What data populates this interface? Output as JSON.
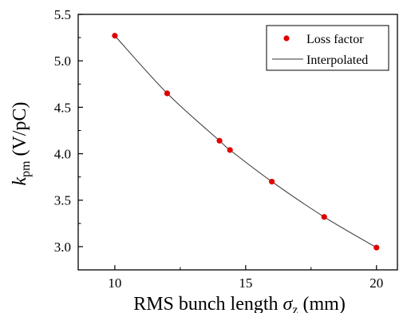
{
  "chart_data": {
    "type": "scatter",
    "xlabel": {
      "main": "RMS bunch length ",
      "symbol": "σ",
      "subscript": "z",
      "unit": " (mm)"
    },
    "ylabel": {
      "symbol": "k",
      "subscript": "pm",
      "unit": " (V/pC)"
    },
    "xlim": [
      8.6,
      20.8
    ],
    "ylim": [
      2.75,
      5.5
    ],
    "xticks": [
      10,
      15,
      20
    ],
    "xtick_labels": [
      "10",
      "15",
      "20"
    ],
    "yticks": [
      3.0,
      3.5,
      4.0,
      4.5,
      5.0,
      5.5
    ],
    "ytick_labels": [
      "3.0",
      "3.5",
      "4.0",
      "4.5",
      "5.0",
      "5.5"
    ],
    "grid": false,
    "legend_position": "top-right",
    "series": [
      {
        "name": "Loss factor",
        "kind": "markers",
        "color": "#e00000",
        "x": [
          10,
          12,
          14,
          14.4,
          16,
          18,
          20
        ],
        "y": [
          5.27,
          4.65,
          4.14,
          4.04,
          3.7,
          3.32,
          2.99
        ]
      },
      {
        "name": "Interpolated",
        "kind": "line",
        "color": "#333333",
        "x": [
          10,
          12,
          14,
          14.4,
          16,
          18,
          20
        ],
        "y": [
          5.27,
          4.65,
          4.14,
          4.04,
          3.7,
          3.32,
          2.99
        ]
      }
    ]
  }
}
